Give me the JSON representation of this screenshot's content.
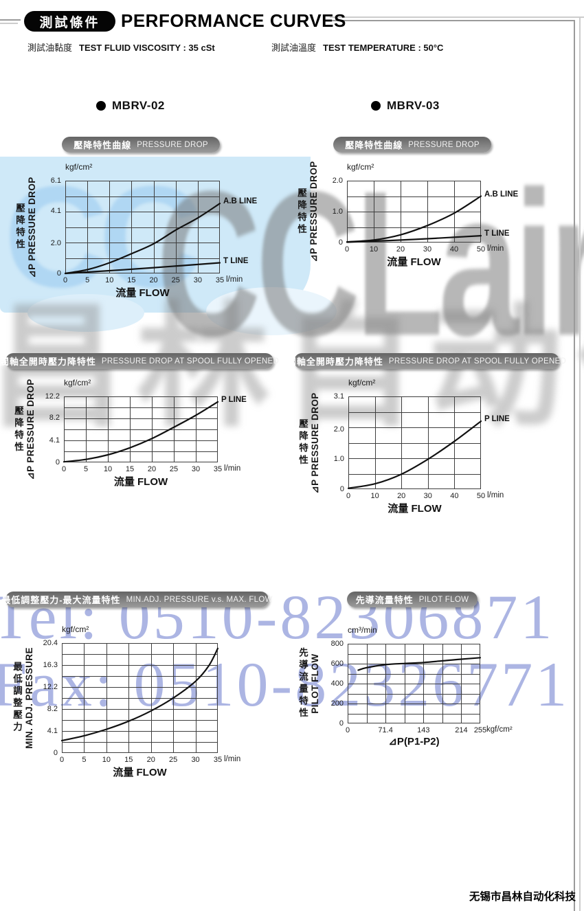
{
  "header": {
    "tag_zh": "測試條件",
    "title": "PERFORMANCE CURVES"
  },
  "conditions": [
    {
      "zh": "測試油黏度",
      "en": "TEST FLUID VISCOSITY : 35 cSt"
    },
    {
      "zh": "測試油溫度",
      "en": "TEST TEMPERATURE : 50°C"
    }
  ],
  "models": [
    {
      "label": "MBRV-02"
    },
    {
      "label": "MBRV-03"
    }
  ],
  "watermark": {
    "logo_cc": "CC",
    "logo": "CCLair",
    "company_zh": "昌林自动化",
    "tel": "Tel: 0510-82306871",
    "fax": "Fax: 0510-82326771",
    "blue_text_color": "#9ea8de",
    "gray_color": "#707070",
    "lightblue_block": "#cfe9f8"
  },
  "footer": {
    "company": "无锡市昌林自动化科技"
  },
  "chart_data": [
    {
      "type": "line",
      "model": "MBRV-02",
      "title_zh": "壓降特性曲線",
      "title_en": "PRESSURE DROP",
      "y_unit": "kgf/cm²",
      "x_unit": "l/min",
      "xlabel": "流量 FLOW",
      "ylabel_zh": "壓降特性",
      "ylabel_en": "⊿P PRESSURE DROP",
      "ylim": [
        0,
        6.1
      ],
      "x_grid": [
        0,
        5,
        10,
        15,
        20,
        25,
        30,
        35
      ],
      "x_ticks": [
        {
          "v": 0,
          "t": "0"
        },
        {
          "v": 5,
          "t": "5"
        },
        {
          "v": 10,
          "t": "10"
        },
        {
          "v": 15,
          "t": "15"
        },
        {
          "v": 20,
          "t": "20"
        },
        {
          "v": 25,
          "t": "25"
        },
        {
          "v": 30,
          "t": "30"
        },
        {
          "v": 35,
          "t": "35"
        }
      ],
      "y_ticks": [
        {
          "v": 0,
          "t": "0"
        },
        {
          "v": 2.0,
          "t": "2.0"
        },
        {
          "v": 4.1,
          "t": "4.1"
        },
        {
          "v": 6.1,
          "t": "6.1"
        }
      ],
      "grid": true,
      "series": [
        {
          "name": "A.B LINE",
          "points": [
            [
              0,
              0
            ],
            [
              5,
              0.25
            ],
            [
              10,
              0.7
            ],
            [
              15,
              1.3
            ],
            [
              20,
              1.95
            ],
            [
              25,
              2.85
            ],
            [
              30,
              3.65
            ],
            [
              35,
              4.6
            ]
          ]
        },
        {
          "name": "T LINE",
          "points": [
            [
              0,
              0
            ],
            [
              10,
              0.18
            ],
            [
              20,
              0.38
            ],
            [
              35,
              0.7
            ]
          ]
        }
      ]
    },
    {
      "type": "line",
      "model": "MBRV-03",
      "title_zh": "壓降特性曲線",
      "title_en": "PRESSURE DROP",
      "y_unit": "kgf/cm²",
      "x_unit": "l/min",
      "xlabel": "流量 FLOW",
      "ylabel_zh": "壓降特性",
      "ylabel_en": "⊿P PRESSURE DROP",
      "ylim": [
        0,
        2.0
      ],
      "x_grid": [
        0,
        10,
        20,
        30,
        40,
        50
      ],
      "x_ticks": [
        {
          "v": 0,
          "t": "0"
        },
        {
          "v": 10,
          "t": "10"
        },
        {
          "v": 20,
          "t": "20"
        },
        {
          "v": 30,
          "t": "30"
        },
        {
          "v": 40,
          "t": "40"
        },
        {
          "v": 50,
          "t": "50"
        }
      ],
      "y_ticks": [
        {
          "v": 0,
          "t": "0"
        },
        {
          "v": 1.0,
          "t": "1.0"
        },
        {
          "v": 2.0,
          "t": "2.0"
        }
      ],
      "grid": true,
      "series": [
        {
          "name": "A.B LINE",
          "points": [
            [
              0,
              0.02
            ],
            [
              10,
              0.08
            ],
            [
              20,
              0.25
            ],
            [
              30,
              0.55
            ],
            [
              40,
              0.95
            ],
            [
              50,
              1.5
            ]
          ]
        },
        {
          "name": "T LINE",
          "points": [
            [
              0,
              0.01
            ],
            [
              25,
              0.1
            ],
            [
              50,
              0.22
            ]
          ]
        }
      ]
    },
    {
      "type": "line",
      "model": "MBRV-02",
      "title_zh": "閥軸全開時壓力降特性",
      "title_en": "PRESSURE DROP AT SPOOL FULLY OPENED",
      "y_unit": "kgf/cm²",
      "x_unit": "l/min",
      "xlabel": "流量 FLOW",
      "ylabel_zh": "壓降特性",
      "ylabel_en": "⊿P PRESSURE DROP",
      "ylim": [
        0,
        12.2
      ],
      "x_grid": [
        0,
        5,
        10,
        15,
        20,
        25,
        30,
        35
      ],
      "x_ticks": [
        {
          "v": 0,
          "t": "0"
        },
        {
          "v": 5,
          "t": "5"
        },
        {
          "v": 10,
          "t": "10"
        },
        {
          "v": 15,
          "t": "15"
        },
        {
          "v": 20,
          "t": "20"
        },
        {
          "v": 25,
          "t": "25"
        },
        {
          "v": 30,
          "t": "30"
        },
        {
          "v": 35,
          "t": "35"
        }
      ],
      "y_ticks": [
        {
          "v": 0,
          "t": "0"
        },
        {
          "v": 4.1,
          "t": "4.1"
        },
        {
          "v": 8.2,
          "t": "8.2"
        },
        {
          "v": 12.2,
          "t": "12.2"
        }
      ],
      "grid": true,
      "series": [
        {
          "name": "P LINE",
          "points": [
            [
              0,
              0.1
            ],
            [
              5,
              0.55
            ],
            [
              10,
              1.4
            ],
            [
              15,
              2.7
            ],
            [
              20,
              4.4
            ],
            [
              25,
              6.5
            ],
            [
              30,
              8.7
            ],
            [
              35,
              11.2
            ]
          ]
        }
      ]
    },
    {
      "type": "line",
      "model": "MBRV-03",
      "title_zh": "閥軸全開時壓力降特性",
      "title_en": "PRESSURE DROP AT SPOOL FULLY OPENED",
      "y_unit": "kgf/cm²",
      "x_unit": "l/min",
      "xlabel": "流量 FLOW",
      "ylabel_zh": "壓降特性",
      "ylabel_en": "⊿P PRESSURE DROP",
      "ylim": [
        0,
        3.1
      ],
      "x_grid": [
        0,
        10,
        20,
        30,
        40,
        50
      ],
      "x_ticks": [
        {
          "v": 0,
          "t": "0"
        },
        {
          "v": 10,
          "t": "10"
        },
        {
          "v": 20,
          "t": "20"
        },
        {
          "v": 30,
          "t": "30"
        },
        {
          "v": 40,
          "t": "40"
        },
        {
          "v": 50,
          "t": "50"
        }
      ],
      "y_ticks": [
        {
          "v": 0,
          "t": "0"
        },
        {
          "v": 1.0,
          "t": "1.0"
        },
        {
          "v": 2.0,
          "t": "2.0"
        },
        {
          "v": 3.1,
          "t": "3.1"
        }
      ],
      "grid": true,
      "series": [
        {
          "name": "P LINE",
          "points": [
            [
              0,
              0.03
            ],
            [
              10,
              0.18
            ],
            [
              20,
              0.5
            ],
            [
              30,
              1.0
            ],
            [
              40,
              1.6
            ],
            [
              50,
              2.27
            ]
          ]
        }
      ]
    },
    {
      "type": "line",
      "model": "MBRV-02",
      "title_zh": "最低調整壓力-最大流量特性",
      "title_en": "MIN.ADJ. PRESSURE v.s. MAX. FLOW",
      "y_unit": "kgf/cm²",
      "x_unit": "l/min",
      "xlabel": "流量 FLOW",
      "ylabel_zh": "最低調整壓力",
      "ylabel_en": "MIN. ADJ. PRESSURE",
      "ylim": [
        0,
        20.4
      ],
      "x_grid": [
        0,
        5,
        10,
        15,
        20,
        25,
        30,
        35
      ],
      "x_ticks": [
        {
          "v": 0,
          "t": "0"
        },
        {
          "v": 5,
          "t": "5"
        },
        {
          "v": 10,
          "t": "10"
        },
        {
          "v": 15,
          "t": "15"
        },
        {
          "v": 20,
          "t": "20"
        },
        {
          "v": 25,
          "t": "25"
        },
        {
          "v": 30,
          "t": "30"
        },
        {
          "v": 35,
          "t": "35"
        }
      ],
      "y_ticks": [
        {
          "v": 0,
          "t": "0"
        },
        {
          "v": 4.1,
          "t": "4.1"
        },
        {
          "v": 8.2,
          "t": "8.2"
        },
        {
          "v": 12.2,
          "t": "12.2"
        },
        {
          "v": 16.3,
          "t": "16.3"
        },
        {
          "v": 20.4,
          "t": "20.4"
        }
      ],
      "grid": true,
      "series": [
        {
          "name": "",
          "points": [
            [
              0,
              2.3
            ],
            [
              5,
              3.2
            ],
            [
              10,
              4.4
            ],
            [
              15,
              5.9
            ],
            [
              20,
              7.8
            ],
            [
              25,
              10.2
            ],
            [
              30,
              13.3
            ],
            [
              33,
              16.2
            ],
            [
              35,
              19.4
            ]
          ]
        }
      ]
    },
    {
      "type": "line",
      "model": "MBRV",
      "title_zh": "先導流量特性",
      "title_en": "PILOT FLOW",
      "y_unit": "cm³/min",
      "x_unit": "kgf/cm²",
      "xlabel": "⊿P(P1-P2)",
      "ylabel_zh": "先導流量特性",
      "ylabel_en": "PILOT FLOW",
      "ylim": [
        0,
        800
      ],
      "x_grid": [
        0,
        35.7,
        71.4,
        107,
        143,
        178.5,
        214,
        255
      ],
      "x_ticks": [
        {
          "v": 0,
          "t": "0"
        },
        {
          "v": 71.4,
          "t": "71.4"
        },
        {
          "v": 143,
          "t": "143"
        },
        {
          "v": 214,
          "t": "214"
        },
        {
          "v": 255,
          "t": "255"
        }
      ],
      "y_ticks": [
        {
          "v": 0,
          "t": "0"
        },
        {
          "v": 200,
          "t": "200"
        },
        {
          "v": 400,
          "t": "400"
        },
        {
          "v": 600,
          "t": "600"
        },
        {
          "v": 800,
          "t": "800"
        }
      ],
      "grid": true,
      "series": [
        {
          "name": "",
          "points": [
            [
              20,
              535
            ],
            [
              35.7,
              560
            ],
            [
              71.4,
              590
            ],
            [
              107,
              602
            ],
            [
              143,
              612
            ],
            [
              178.5,
              628
            ],
            [
              214,
              645
            ],
            [
              255,
              660
            ]
          ]
        }
      ]
    }
  ]
}
